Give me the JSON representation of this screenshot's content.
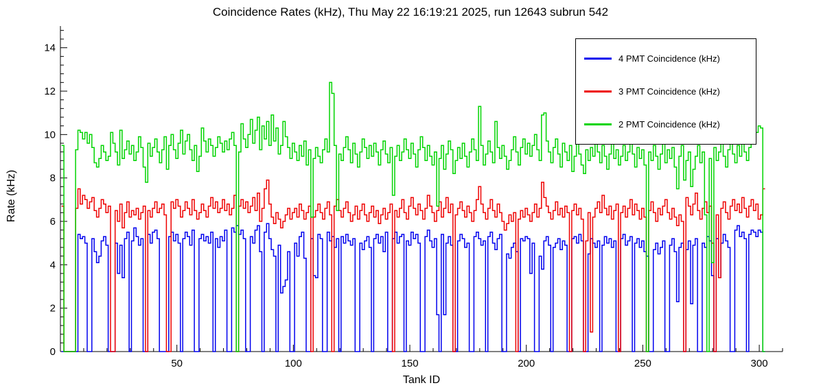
{
  "title": "Coincidence Rates (kHz), Thu May 22 16:19:21 2025, run 12643 subrun 542",
  "chart_data": {
    "type": "line",
    "subtype": "step-histogram",
    "title": "Coincidence Rates (kHz), Thu May 22 16:19:21 2025, run 12643 subrun 542",
    "xlabel": "Tank ID",
    "ylabel": "Rate (kHz)",
    "xlim": [
      0,
      310
    ],
    "ylim": [
      0,
      15
    ],
    "x_ticks": [
      50,
      100,
      150,
      200,
      250,
      300
    ],
    "y_ticks": [
      0,
      2,
      4,
      6,
      8,
      10,
      12,
      14
    ],
    "x_minor_step": 10,
    "y_minor_step": 0.4,
    "grid": false,
    "legend_position": "top-right",
    "x_start": 1,
    "series": [
      {
        "name": "4 PMT Coincidence (kHz)",
        "color": "#0000ee",
        "values": [
          0,
          0,
          0,
          0,
          0,
          0,
          0,
          5.4,
          5.2,
          5.3,
          5.0,
          0,
          0,
          5.2,
          4.6,
          4.1,
          4.4,
          5.1,
          5.3,
          4.9,
          0,
          0,
          0,
          5.0,
          3.6,
          4.9,
          3.4,
          5.2,
          5.5,
          0,
          5.1,
          5.7,
          5.3,
          4.9,
          5.2,
          0,
          0,
          5.4,
          5.0,
          5.5,
          5.6,
          5.2,
          0,
          0,
          0,
          0,
          5.3,
          5.5,
          5.1,
          5.4,
          5.0,
          0,
          5.2,
          5.5,
          5.3,
          4.9,
          5.6,
          0,
          0,
          5.2,
          5.4,
          5.1,
          5.3,
          5.0,
          5.5,
          0,
          5.2,
          4.8,
          5.3,
          5.1,
          5.6,
          0,
          0,
          5.7,
          5.5,
          5.8,
          5.4,
          5.6,
          5.2,
          0,
          0,
          5.3,
          5.0,
          5.6,
          5.8,
          4.6,
          0,
          5.5,
          5.9,
          5.2,
          4.7,
          4.4,
          0,
          4.9,
          2.7,
          3.0,
          3.3,
          4.6,
          0,
          0,
          5.0,
          4.4,
          5.3,
          5.5,
          4.3,
          0,
          0,
          5.2,
          3.5,
          3.4,
          5.4,
          5.2,
          0,
          0,
          5.5,
          5.1,
          5.3,
          4.8,
          5.2,
          0,
          5.3,
          5.0,
          5.4,
          5.1,
          4.9,
          5.2,
          0,
          0,
          5.0,
          4.7,
          5.1,
          5.3,
          4.8,
          0,
          5.2,
          5.4,
          5.0,
          5.3,
          4.6,
          5.5,
          0,
          0,
          5.2,
          5.5,
          5.0,
          5.3,
          5.4,
          0,
          5.1,
          4.9,
          5.5,
          5.2,
          5.4,
          5.0,
          0,
          0,
          5.3,
          5.6,
          5.1,
          4.8,
          5.2,
          1.7,
          0,
          5.4,
          1.7,
          5.0,
          5.3,
          4.9,
          0,
          0,
          5.1,
          5.4,
          5.2,
          4.8,
          5.0,
          0,
          0,
          5.3,
          5.5,
          5.2,
          4.9,
          5.1,
          0,
          5.3,
          5.5,
          5.0,
          4.7,
          5.2,
          5.4,
          0,
          0,
          4.5,
          4.3,
          4.8,
          5.0,
          4.6,
          0,
          5.2,
          5.1,
          5.3,
          5.2,
          3.6,
          5.0,
          0,
          0,
          4.4,
          3.8,
          5.1,
          5.3,
          4.9,
          0,
          4.8,
          5.0,
          5.2,
          4.7,
          5.1,
          4.9,
          0,
          0,
          5.2,
          5.3,
          5.0,
          5.4,
          5.1,
          0,
          0,
          4.5,
          5.2,
          5.0,
          4.8,
          5.1,
          0,
          4.9,
          5.3,
          5.0,
          5.2,
          4.8,
          5.1,
          0,
          0,
          5.2,
          5.4,
          4.9,
          5.1,
          5.3,
          0,
          5.0,
          5.2,
          4.8,
          5.1,
          4.6,
          4.4,
          0,
          0,
          4.7,
          5.0,
          4.5,
          4.8,
          5.1,
          0,
          0,
          4.9,
          5.2,
          4.6,
          2.3,
          4.8,
          5.0,
          0,
          4.7,
          5.1,
          2.2,
          4.9,
          5.2,
          0,
          0,
          5.0,
          4.8,
          5.3,
          5.1,
          3.5,
          0,
          5.2,
          3.4,
          5.0,
          5.4,
          5.1,
          4.8,
          0,
          0,
          5.6,
          5.8,
          5.3,
          5.5,
          5.2,
          0,
          5.4,
          5.6,
          5.5,
          5.3,
          5.6,
          5.5,
          0
        ]
      },
      {
        "name": "3 PMT Coincidence (kHz)",
        "color": "#ee0000",
        "values": [
          6.7,
          0,
          0,
          0,
          0,
          0,
          6.6,
          7.5,
          6.8,
          7.2,
          7.0,
          6.6,
          6.9,
          7.1,
          6.5,
          6.2,
          6.6,
          7.0,
          6.8,
          6.4,
          6.7,
          0,
          0,
          6.5,
          6.0,
          6.8,
          5.7,
          6.4,
          6.9,
          6.2,
          6.5,
          6.3,
          6.6,
          6.1,
          6.4,
          6.7,
          0,
          6.5,
          6.2,
          6.6,
          6.9,
          6.4,
          6.6,
          6.8,
          6.3,
          0,
          0,
          6.9,
          6.6,
          7.0,
          6.7,
          6.2,
          6.5,
          6.9,
          6.6,
          6.3,
          7.0,
          6.5,
          6.1,
          6.4,
          6.8,
          6.5,
          6.2,
          6.7,
          7.1,
          6.6,
          6.9,
          6.4,
          6.6,
          7.0,
          6.5,
          6.8,
          6.3,
          6.6,
          7.2,
          0,
          6.7,
          7.0,
          6.6,
          6.9,
          6.4,
          6.7,
          7.1,
          6.5,
          7.3,
          6.0,
          6.6,
          7.5,
          7.9,
          6.8,
          6.2,
          5.9,
          6.4,
          6.1,
          5.7,
          6.0,
          6.3,
          6.6,
          6.1,
          6.4,
          6.6,
          6.2,
          6.8,
          6.5,
          6.1,
          6.4,
          6.7,
          0,
          6.2,
          6.5,
          6.8,
          6.4,
          6.1,
          6.6,
          6.9,
          6.3,
          0,
          6.7,
          7.0,
          6.5,
          6.2,
          6.6,
          6.9,
          6.4,
          6.0,
          6.3,
          6.7,
          6.1,
          6.5,
          6.8,
          6.3,
          6.0,
          6.4,
          6.7,
          6.2,
          6.5,
          5.9,
          6.3,
          6.6,
          6.1,
          6.4,
          6.8,
          0,
          6.5,
          6.2,
          6.6,
          7.0,
          6.4,
          6.1,
          6.7,
          7.1,
          6.6,
          6.3,
          6.8,
          6.5,
          6.1,
          6.6,
          7.2,
          6.7,
          6.4,
          6.0,
          6.5,
          6.9,
          6.2,
          6.6,
          7.1,
          6.4,
          6.8,
          0,
          6.3,
          6.6,
          6.9,
          6.5,
          6.2,
          6.7,
          6.4,
          6.0,
          6.5,
          7.0,
          7.6,
          6.8,
          6.4,
          6.1,
          6.6,
          7.0,
          6.5,
          6.2,
          6.8,
          6.4,
          6.0,
          5.6,
          5.9,
          6.3,
          6.0,
          6.4,
          0,
          6.1,
          6.5,
          6.2,
          6.6,
          6.3,
          6.0,
          6.4,
          6.8,
          6.2,
          6.6,
          7.8,
          7.1,
          6.7,
          6.4,
          6.1,
          6.5,
          6.9,
          6.3,
          6.6,
          6.2,
          6.7,
          6.4,
          0,
          6.5,
          6.8,
          6.3,
          6.6,
          6.1,
          0,
          5.1,
          6.4,
          0.9,
          6.2,
          6.6,
          6.9,
          6.4,
          7.2,
          6.6,
          6.3,
          6.7,
          6.1,
          6.5,
          6.8,
          0,
          6.4,
          6.7,
          6.2,
          6.6,
          7.0,
          6.3,
          6.8,
          6.5,
          6.1,
          6.6,
          6.2,
          0,
          6.5,
          6.9,
          6.4,
          6.0,
          6.6,
          6.3,
          6.7,
          7.0,
          6.4,
          6.1,
          6.6,
          6.2,
          5.8,
          6.3,
          6.0,
          0,
          7.1,
          6.7,
          6.3,
          6.8,
          7.3,
          6.5,
          6.1,
          6.6,
          6.9,
          6.4,
          6.7,
          5.0,
          0,
          6.3,
          3.4,
          6.6,
          6.9,
          6.4,
          6.1,
          6.7,
          7.0,
          6.5,
          6.8,
          6.4,
          7.1,
          6.6,
          6.2,
          6.7,
          7.0,
          6.5,
          6.8,
          6.1,
          6.3,
          7.5
        ]
      },
      {
        "name": "2 PMT Coincidence (kHz)",
        "color": "#00d400",
        "values": [
          9.5,
          0,
          0,
          0,
          0,
          0,
          9.3,
          10.2,
          10.1,
          9.8,
          10.1,
          9.6,
          10.0,
          9.4,
          8.7,
          8.5,
          8.9,
          9.5,
          9.2,
          8.8,
          9.0,
          10.1,
          9.6,
          9.2,
          8.6,
          10.2,
          8.9,
          9.3,
          9.7,
          9.1,
          9.5,
          8.8,
          9.2,
          9.9,
          9.4,
          8.5,
          7.8,
          9.6,
          9.0,
          9.4,
          9.8,
          9.2,
          8.7,
          9.3,
          9.9,
          8.4,
          9.5,
          10.0,
          9.3,
          8.9,
          9.6,
          10.2,
          9.1,
          9.7,
          10.0,
          9.3,
          8.8,
          9.5,
          8.3,
          9.0,
          10.3,
          9.7,
          9.2,
          9.8,
          9.5,
          9.0,
          9.4,
          9.9,
          9.6,
          9.2,
          9.7,
          9.3,
          9.8,
          10.1,
          9.5,
          0,
          9.2,
          10.5,
          9.8,
          9.4,
          10.0,
          10.7,
          9.6,
          10.2,
          10.8,
          9.3,
          10.4,
          9.8,
          10.6,
          9.5,
          10.9,
          9.7,
          10.3,
          9.1,
          9.5,
          10.6,
          9.9,
          9.4,
          8.9,
          9.6,
          9.2,
          8.8,
          9.5,
          9.0,
          9.7,
          8.6,
          9.3,
          6.2,
          8.9,
          9.4,
          9.0,
          8.7,
          9.3,
          9.8,
          9.2,
          12.4,
          11.9,
          9.5,
          6.5,
          9.1,
          8.8,
          9.4,
          9.9,
          9.3,
          8.7,
          9.6,
          9.1,
          8.5,
          9.2,
          9.8,
          9.4,
          8.9,
          9.5,
          9.0,
          9.6,
          9.2,
          8.6,
          9.3,
          9.7,
          9.1,
          8.7,
          9.4,
          7.2,
          9.0,
          9.5,
          8.8,
          9.2,
          9.8,
          9.3,
          8.9,
          9.6,
          9.1,
          8.5,
          9.3,
          9.9,
          9.4,
          8.8,
          9.5,
          9.0,
          8.6,
          9.2,
          6.7,
          8.9,
          9.5,
          8.4,
          9.1,
          9.7,
          9.3,
          8.2,
          8.8,
          9.4,
          8.9,
          9.6,
          9.0,
          8.5,
          9.2,
          9.8,
          9.3,
          8.8,
          11.3,
          9.5,
          8.6,
          9.1,
          9.7,
          9.2,
          8.7,
          10.6,
          9.4,
          8.9,
          9.5,
          9.0,
          8.4,
          8.8,
          9.3,
          9.9,
          9.2,
          8.6,
          9.4,
          9.8,
          9.1,
          9.6,
          9.0,
          9.5,
          10.0,
          9.3,
          8.8,
          10.9,
          11.0,
          9.7,
          9.2,
          8.7,
          9.4,
          9.8,
          9.1,
          8.5,
          9.6,
          9.2,
          8.8,
          9.5,
          8.3,
          9.0,
          9.6,
          9.1,
          8.6,
          8.2,
          9.3,
          8.8,
          9.4,
          9.0,
          9.7,
          9.2,
          8.7,
          9.5,
          9.0,
          8.4,
          9.1,
          9.6,
          8.9,
          9.3,
          8.6,
          9.0,
          9.5,
          8.8,
          9.2,
          9.7,
          9.1,
          8.5,
          9.4,
          8.9,
          9.3,
          8.6,
          0,
          9.2,
          8.8,
          9.5,
          9.0,
          8.4,
          9.1,
          9.6,
          8.7,
          9.3,
          8.9,
          9.4,
          8.5,
          7.5,
          9.0,
          9.5,
          7.9,
          8.8,
          9.2,
          7.6,
          8.4,
          9.0,
          9.5,
          8.7,
          9.2,
          6.3,
          0,
          8.9,
          4.1,
          9.4,
          8.8,
          9.2,
          9.7,
          9.0,
          8.5,
          9.3,
          9.8,
          9.1,
          8.7,
          9.5,
          9.0,
          9.6,
          9.2,
          8.8,
          9.4,
          9.9,
          10.2,
          10.1,
          10.4,
          10.3,
          0
        ]
      }
    ]
  }
}
